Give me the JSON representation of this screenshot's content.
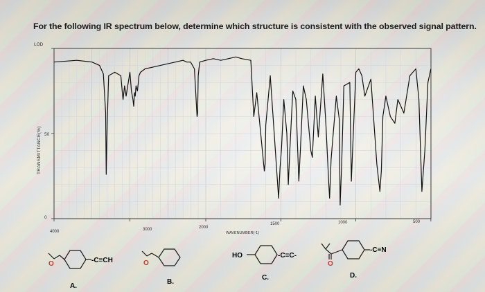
{
  "question": "For the following IR spectrum below, determine which structure is consistent with the observed signal pattern.",
  "chart_data": {
    "type": "line",
    "title": "",
    "xlabel": "WAVENUMBER(-1)",
    "ylabel": "TRANSMITTANCE(%)",
    "xlim": [
      4000,
      500
    ],
    "ylim": [
      0,
      100
    ],
    "x_ticks": [
      4000,
      3000,
      2000,
      1500,
      1000,
      500
    ],
    "x_tick_labels": [
      "4000",
      "3000",
      "2000",
      "1500",
      "1000",
      "500"
    ],
    "y_ticks": [
      0,
      50,
      100
    ],
    "y_tick_labels": [
      "0",
      "50",
      "100"
    ],
    "y_top_label": "LOD",
    "grid": true,
    "series": [
      {
        "color": "#111111",
        "x": [
          4000,
          3700,
          3500,
          3400,
          3350,
          3320,
          3312,
          3300,
          3280,
          3200,
          3120,
          3100,
          3090,
          3070,
          3050,
          3000,
          2980,
          2960,
          2950,
          2940,
          2930,
          2920,
          2900,
          2880,
          2860,
          2800,
          2700,
          2600,
          2500,
          2400,
          2300,
          2250,
          2200,
          2150,
          2115,
          2108,
          2100,
          2080,
          2000,
          1950,
          1900,
          1850,
          1800,
          1760,
          1700,
          1680,
          1660,
          1610,
          1605,
          1600,
          1570,
          1515,
          1505,
          1495,
          1480,
          1460,
          1450,
          1440,
          1420,
          1400,
          1380,
          1370,
          1350,
          1330,
          1300,
          1290,
          1270,
          1250,
          1240,
          1220,
          1200,
          1180,
          1175,
          1165,
          1130,
          1110,
          1105,
          1095,
          1080,
          1040,
          1030,
          1020,
          1000,
          980,
          960,
          940,
          900,
          860,
          840,
          830,
          820,
          800,
          770,
          740,
          720,
          700,
          680,
          640,
          620,
          600,
          580,
          560,
          540,
          520,
          500
        ],
        "y": [
          92,
          93,
          92,
          90,
          85,
          62,
          26,
          55,
          84,
          86,
          84,
          74,
          70,
          78,
          72,
          86,
          75,
          70,
          66,
          74,
          72,
          78,
          75,
          84,
          86,
          88,
          89,
          90,
          91,
          92,
          93,
          92,
          92,
          88,
          60,
          62,
          84,
          92,
          93,
          94,
          93,
          94,
          95,
          94,
          93,
          60,
          74,
          28,
          32,
          55,
          84,
          12,
          30,
          42,
          70,
          50,
          20,
          40,
          75,
          70,
          22,
          40,
          78,
          70,
          40,
          36,
          72,
          48,
          60,
          85,
          56,
          20,
          12,
          35,
          72,
          58,
          8,
          30,
          78,
          80,
          22,
          44,
          86,
          88,
          84,
          72,
          82,
          32,
          16,
          28,
          60,
          72,
          60,
          56,
          70,
          66,
          62,
          84,
          86,
          88,
          70,
          16,
          40,
          80,
          88
        ]
      }
    ]
  },
  "options": [
    {
      "letter": "A.",
      "substituent": "-C≡CH"
    },
    {
      "letter": "B.",
      "substituent": ""
    },
    {
      "letter": "C.",
      "left_group": "HO",
      "substituent": "-C≡C-"
    },
    {
      "letter": "D.",
      "substituent": "-C≡N"
    }
  ]
}
